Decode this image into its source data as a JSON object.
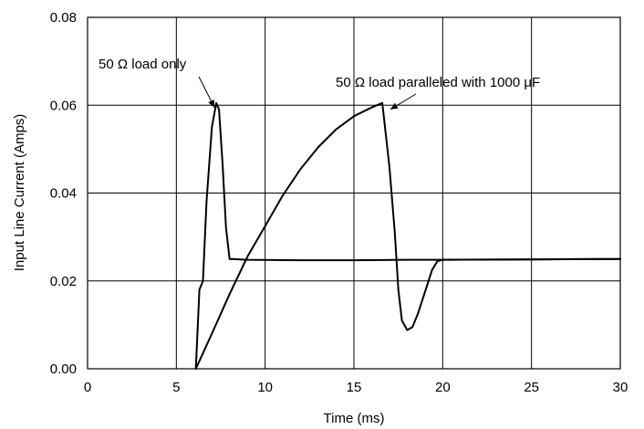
{
  "chart_data": {
    "type": "line",
    "title": "",
    "xlabel": "Time (ms)",
    "ylabel": "Input Line Current (Amps)",
    "xlim": [
      0,
      30
    ],
    "ylim": [
      0,
      0.08
    ],
    "x_ticks": [
      0,
      5,
      10,
      15,
      20,
      25,
      30
    ],
    "x_tick_labels": [
      "0",
      "5",
      "10",
      "15",
      "20",
      "25",
      "30"
    ],
    "y_ticks": [
      0,
      0.02,
      0.04,
      0.06,
      0.08
    ],
    "y_tick_labels": [
      "0.00",
      "0.02",
      "0.04",
      "0.06",
      "0.08"
    ],
    "grid": true,
    "series": [
      {
        "points": [
          [
            6.1,
            0
          ],
          [
            6.3,
            0.018
          ],
          [
            6.5,
            0.02
          ],
          [
            6.7,
            0.038
          ],
          [
            7.0,
            0.055
          ],
          [
            7.25,
            0.0605
          ],
          [
            7.4,
            0.059
          ],
          [
            7.6,
            0.047
          ],
          [
            7.8,
            0.032
          ],
          [
            8.0,
            0.025
          ],
          [
            9.0,
            0.0248
          ],
          [
            12.0,
            0.0247
          ],
          [
            15.0,
            0.0247
          ],
          [
            18.0,
            0.0248
          ],
          [
            20.0,
            0.0248
          ],
          [
            25.0,
            0.0249
          ],
          [
            30.0,
            0.025
          ]
        ]
      },
      {
        "points": [
          [
            6.1,
            0
          ],
          [
            7.0,
            0.008
          ],
          [
            8.0,
            0.017
          ],
          [
            9.0,
            0.0255
          ],
          [
            10.0,
            0.0325
          ],
          [
            11.0,
            0.0395
          ],
          [
            12.0,
            0.0455
          ],
          [
            13.0,
            0.0505
          ],
          [
            14.0,
            0.0545
          ],
          [
            15.0,
            0.0575
          ],
          [
            16.0,
            0.0595
          ],
          [
            16.6,
            0.0605
          ],
          [
            17.0,
            0.046
          ],
          [
            17.3,
            0.031
          ],
          [
            17.5,
            0.018
          ],
          [
            17.7,
            0.011
          ],
          [
            18.0,
            0.0088
          ],
          [
            18.3,
            0.0095
          ],
          [
            18.6,
            0.0125
          ],
          [
            19.0,
            0.0175
          ],
          [
            19.4,
            0.0225
          ],
          [
            19.7,
            0.0245
          ],
          [
            20.0,
            0.0248
          ],
          [
            25.0,
            0.0249
          ],
          [
            30.0,
            0.025
          ]
        ]
      }
    ],
    "annotations": [
      {
        "text": "50 Ω load  only",
        "target": [
          7.2,
          0.0605
        ]
      },
      {
        "text": "50 Ω load paralleled with 1000 μF",
        "target": [
          17.0,
          0.0605
        ]
      }
    ]
  }
}
